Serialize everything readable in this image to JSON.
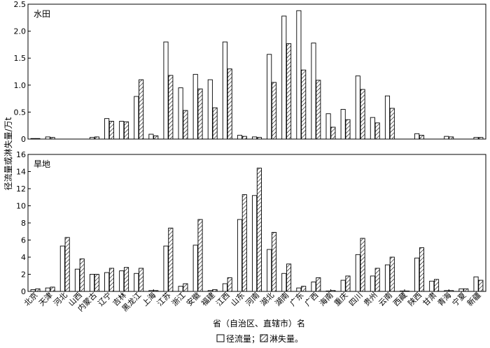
{
  "chart_data": {
    "type": "bar",
    "ylabel": "径流量或淋失量/万t",
    "xlabel": "省（自治区、直辖市）名",
    "legend": {
      "items": [
        "径流量；",
        "淋失量。"
      ],
      "placement": "bottom"
    },
    "categories": [
      "北京",
      "天津",
      "河北",
      "山西",
      "内蒙古",
      "辽宁",
      "吉林",
      "黑龙江",
      "上海",
      "江苏",
      "浙江",
      "安徽",
      "福建",
      "江西",
      "山东",
      "河南",
      "湖北",
      "湖南",
      "广东",
      "广西",
      "海南",
      "重庆",
      "四川",
      "贵州",
      "云南",
      "西藏",
      "陕西",
      "甘肃",
      "青海",
      "宁夏",
      "新疆"
    ],
    "panels": [
      {
        "title": "水田",
        "ylim": [
          0,
          2.5
        ],
        "yticks": [
          "0",
          "0.5",
          "1.0",
          "1.5",
          "2.0",
          "2.5"
        ],
        "series": [
          {
            "name": "径流量",
            "values": [
              0.01,
              0.04,
              0,
              0,
              0.03,
              0.38,
              0.33,
              0.79,
              0.09,
              1.8,
              0.95,
              1.2,
              1.1,
              1.8,
              0.07,
              0.04,
              1.57,
              2.28,
              2.38,
              1.78,
              0.47,
              0.55,
              1.17,
              0.4,
              0.8,
              0,
              0.1,
              0,
              0.05,
              0,
              0.03
            ]
          },
          {
            "name": "淋失量",
            "values": [
              0.01,
              0.03,
              0,
              0,
              0.04,
              0.33,
              0.32,
              1.1,
              0.06,
              1.18,
              0.53,
              0.93,
              0.58,
              1.3,
              0.05,
              0.03,
              1.05,
              1.77,
              1.28,
              1.09,
              0.22,
              0.36,
              0.92,
              0.3,
              0.57,
              0,
              0.07,
              0,
              0.04,
              0,
              0.03
            ]
          }
        ]
      },
      {
        "title": "旱地",
        "ylim": [
          0,
          16
        ],
        "yticks": [
          "0",
          "2",
          "4",
          "6",
          "8",
          "10",
          "12",
          "14",
          "16"
        ],
        "series": [
          {
            "name": "径流量",
            "values": [
              0.2,
              0.4,
              5.3,
              2.6,
              2.0,
              2.2,
              2.4,
              2.1,
              0.1,
              5.3,
              0.6,
              5.4,
              0.1,
              0.9,
              8.4,
              11.2,
              4.9,
              2.1,
              0.4,
              1.1,
              0.05,
              1.3,
              4.3,
              1.8,
              3.1,
              0.05,
              3.9,
              1.2,
              0.1,
              0.3,
              1.7
            ]
          },
          {
            "name": "淋失量",
            "values": [
              0.3,
              0.5,
              6.3,
              3.8,
              2.0,
              2.7,
              2.8,
              2.7,
              0.1,
              7.4,
              0.9,
              8.4,
              0.2,
              1.6,
              11.3,
              14.4,
              6.9,
              3.2,
              0.6,
              1.6,
              0.1,
              1.8,
              6.2,
              2.7,
              4.0,
              0.05,
              5.1,
              1.4,
              0.1,
              0.3,
              1.3
            ]
          }
        ]
      }
    ],
    "grid": false
  }
}
